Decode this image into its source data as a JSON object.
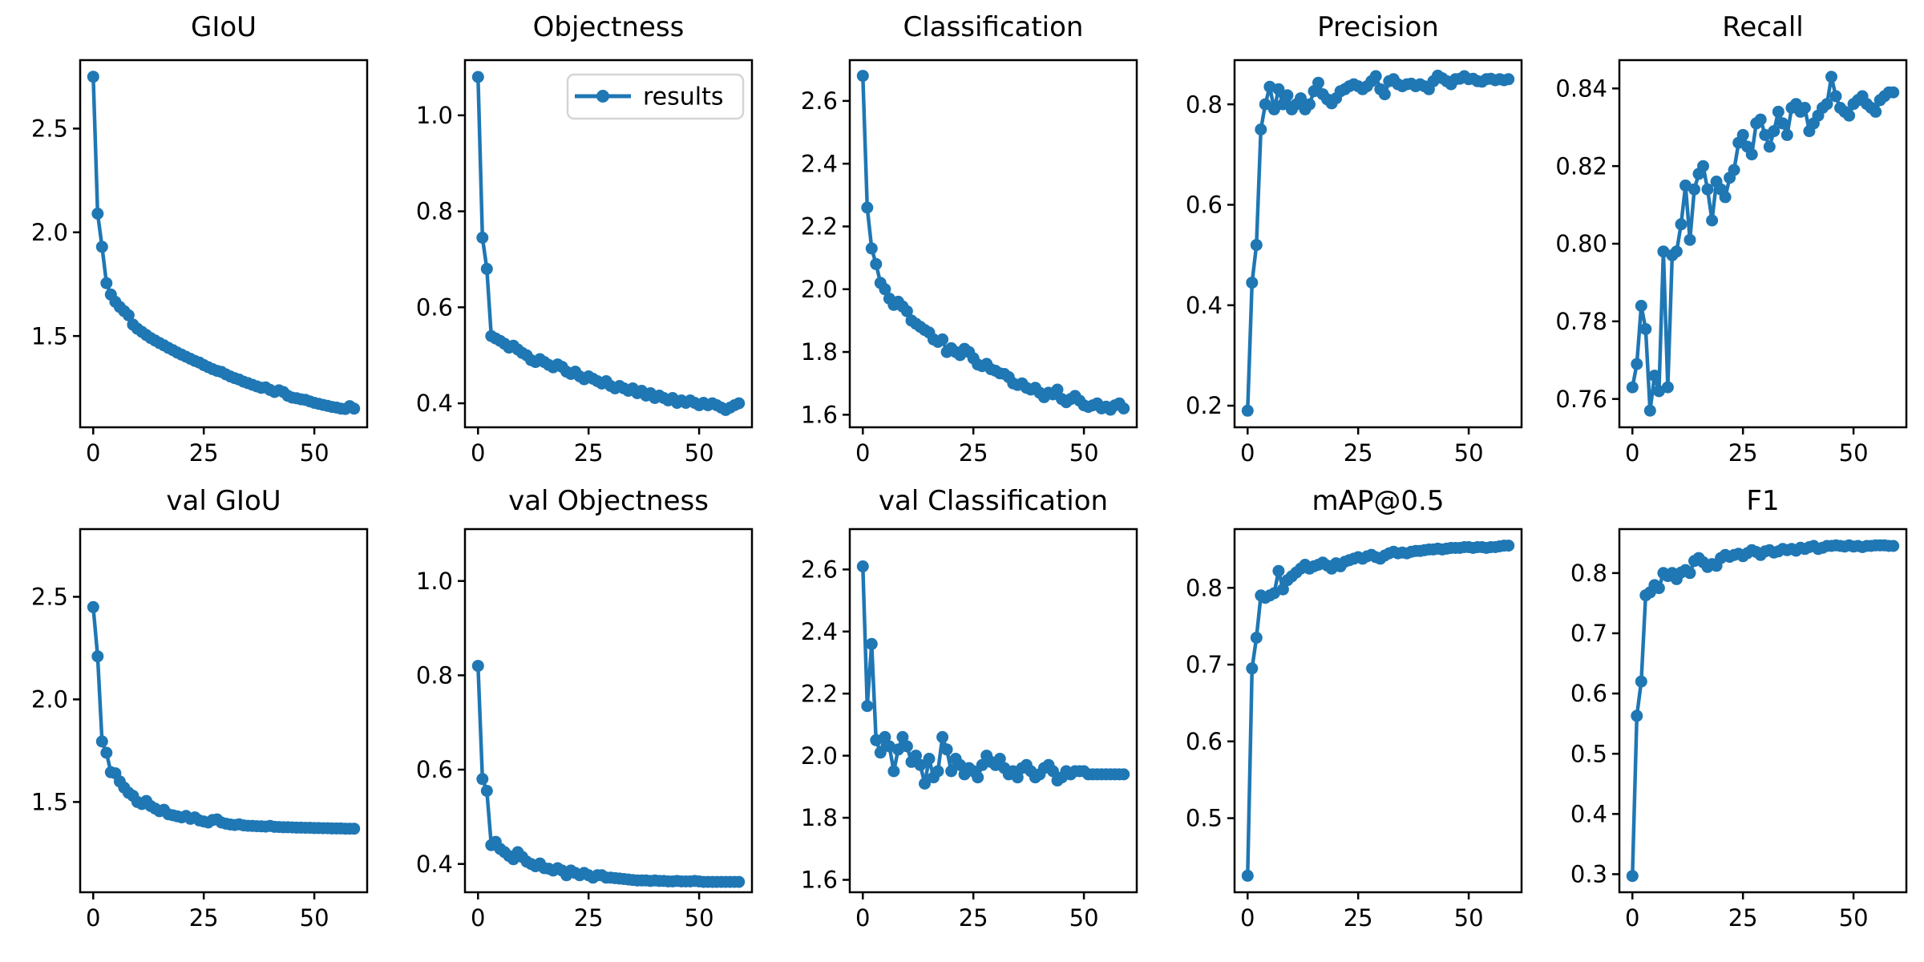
{
  "figure": {
    "background": "#ffffff",
    "text_color": "#000000",
    "spine_color": "#000000",
    "line_color": "#1f77b4",
    "legend": {
      "label": "results",
      "border_color": "#d5d5d5",
      "fill": "#ffffff"
    }
  },
  "chart_data": {
    "type": "line",
    "layout": "2 rows x 5 columns, no grid lines, legend only in Objectness panel (upper right)",
    "marker": "circle",
    "series_color": "#1f77b4",
    "epochs": [
      0,
      1,
      2,
      3,
      4,
      5,
      6,
      7,
      8,
      9,
      10,
      11,
      12,
      13,
      14,
      15,
      16,
      17,
      18,
      19,
      20,
      21,
      22,
      23,
      24,
      25,
      26,
      27,
      28,
      29,
      30,
      31,
      32,
      33,
      34,
      35,
      36,
      37,
      38,
      39,
      40,
      41,
      42,
      43,
      44,
      45,
      46,
      47,
      48,
      49,
      50,
      51,
      52,
      53,
      54,
      55,
      56,
      57,
      58,
      59
    ],
    "xlim": [
      -2.95,
      61.95
    ],
    "xticks": [
      0,
      25,
      50
    ],
    "plots": [
      {
        "id": "giou",
        "title": "GIoU",
        "row": 0,
        "ylim": [
          1.06,
          2.83
        ],
        "yticks": [
          1.5,
          2.0,
          2.5
        ],
        "ytick_decimals": 1,
        "values": [
          2.75,
          2.09,
          1.93,
          1.755,
          1.7,
          1.665,
          1.64,
          1.62,
          1.6,
          1.555,
          1.535,
          1.52,
          1.505,
          1.49,
          1.478,
          1.466,
          1.455,
          1.443,
          1.432,
          1.42,
          1.41,
          1.4,
          1.39,
          1.38,
          1.372,
          1.36,
          1.35,
          1.34,
          1.332,
          1.327,
          1.315,
          1.305,
          1.297,
          1.29,
          1.28,
          1.273,
          1.265,
          1.257,
          1.25,
          1.252,
          1.24,
          1.23,
          1.238,
          1.23,
          1.212,
          1.203,
          1.2,
          1.195,
          1.192,
          1.185,
          1.178,
          1.173,
          1.168,
          1.163,
          1.158,
          1.155,
          1.15,
          1.148,
          1.162,
          1.15
        ]
      },
      {
        "id": "objectness",
        "title": "Objectness",
        "row": 0,
        "legend": "results",
        "ylim": [
          0.35,
          1.115
        ],
        "yticks": [
          0.4,
          0.6,
          0.8,
          1.0
        ],
        "ytick_decimals": 1,
        "values": [
          1.08,
          0.745,
          0.68,
          0.54,
          0.535,
          0.53,
          0.524,
          0.516,
          0.52,
          0.512,
          0.505,
          0.5,
          0.49,
          0.486,
          0.492,
          0.486,
          0.48,
          0.475,
          0.481,
          0.476,
          0.466,
          0.461,
          0.466,
          0.456,
          0.45,
          0.456,
          0.451,
          0.446,
          0.441,
          0.446,
          0.436,
          0.431,
          0.436,
          0.431,
          0.426,
          0.431,
          0.421,
          0.426,
          0.416,
          0.421,
          0.411,
          0.416,
          0.411,
          0.406,
          0.411,
          0.401,
          0.406,
          0.401,
          0.406,
          0.401,
          0.396,
          0.401,
          0.396,
          0.4,
          0.396,
          0.391,
          0.386,
          0.391,
          0.396,
          0.4
        ]
      },
      {
        "id": "classification",
        "title": "Classification",
        "row": 0,
        "ylim": [
          1.56,
          2.73
        ],
        "yticks": [
          1.6,
          1.8,
          2.0,
          2.2,
          2.4,
          2.6
        ],
        "ytick_decimals": 1,
        "values": [
          2.68,
          2.26,
          2.13,
          2.08,
          2.02,
          2.0,
          1.97,
          1.95,
          1.96,
          1.945,
          1.93,
          1.9,
          1.89,
          1.88,
          1.87,
          1.862,
          1.84,
          1.832,
          1.84,
          1.8,
          1.812,
          1.8,
          1.79,
          1.81,
          1.8,
          1.78,
          1.76,
          1.755,
          1.762,
          1.745,
          1.74,
          1.732,
          1.73,
          1.72,
          1.7,
          1.695,
          1.7,
          1.686,
          1.68,
          1.686,
          1.67,
          1.656,
          1.67,
          1.665,
          1.68,
          1.65,
          1.64,
          1.65,
          1.66,
          1.645,
          1.63,
          1.625,
          1.63,
          1.636,
          1.62,
          1.626,
          1.616,
          1.63,
          1.636,
          1.62
        ]
      },
      {
        "id": "precision",
        "title": "Precision",
        "row": 0,
        "ylim": [
          0.157,
          0.888
        ],
        "yticks": [
          0.2,
          0.4,
          0.6,
          0.8
        ],
        "ytick_decimals": 1,
        "values": [
          0.19,
          0.445,
          0.52,
          0.75,
          0.8,
          0.835,
          0.79,
          0.83,
          0.8,
          0.818,
          0.79,
          0.8,
          0.812,
          0.79,
          0.8,
          0.826,
          0.843,
          0.82,
          0.81,
          0.802,
          0.812,
          0.826,
          0.83,
          0.836,
          0.84,
          0.836,
          0.83,
          0.836,
          0.846,
          0.856,
          0.83,
          0.82,
          0.846,
          0.85,
          0.84,
          0.836,
          0.84,
          0.841,
          0.836,
          0.84,
          0.836,
          0.83,
          0.846,
          0.857,
          0.852,
          0.846,
          0.84,
          0.85,
          0.851,
          0.856,
          0.85,
          0.851,
          0.846,
          0.845,
          0.85,
          0.851,
          0.848,
          0.85,
          0.848,
          0.85
        ]
      },
      {
        "id": "recall",
        "title": "Recall",
        "row": 0,
        "ylim": [
          0.7527,
          0.8473
        ],
        "yticks": [
          0.76,
          0.78,
          0.8,
          0.82,
          0.84
        ],
        "ytick_decimals": 2,
        "values": [
          0.763,
          0.769,
          0.784,
          0.778,
          0.757,
          0.766,
          0.762,
          0.798,
          0.763,
          0.797,
          0.798,
          0.805,
          0.815,
          0.801,
          0.814,
          0.818,
          0.82,
          0.814,
          0.806,
          0.816,
          0.814,
          0.812,
          0.817,
          0.819,
          0.826,
          0.828,
          0.825,
          0.823,
          0.831,
          0.832,
          0.828,
          0.825,
          0.829,
          0.834,
          0.831,
          0.828,
          0.835,
          0.836,
          0.834,
          0.835,
          0.829,
          0.831,
          0.833,
          0.835,
          0.836,
          0.843,
          0.838,
          0.835,
          0.834,
          0.833,
          0.836,
          0.837,
          0.838,
          0.836,
          0.835,
          0.834,
          0.837,
          0.838,
          0.839,
          0.839
        ]
      },
      {
        "id": "val-giou",
        "title": "val GIoU",
        "row": 1,
        "ylim": [
          1.06,
          2.83
        ],
        "yticks": [
          1.5,
          2.0,
          2.5
        ],
        "ytick_decimals": 1,
        "values": [
          2.45,
          2.21,
          1.795,
          1.74,
          1.645,
          1.64,
          1.6,
          1.57,
          1.545,
          1.53,
          1.5,
          1.49,
          1.505,
          1.48,
          1.468,
          1.455,
          1.462,
          1.44,
          1.435,
          1.43,
          1.425,
          1.432,
          1.418,
          1.425,
          1.41,
          1.405,
          1.4,
          1.412,
          1.415,
          1.4,
          1.394,
          1.39,
          1.388,
          1.391,
          1.386,
          1.384,
          1.383,
          1.382,
          1.381,
          1.38,
          1.383,
          1.379,
          1.378,
          1.377,
          1.377,
          1.376,
          1.375,
          1.375,
          1.374,
          1.374,
          1.373,
          1.373,
          1.372,
          1.372,
          1.371,
          1.371,
          1.371,
          1.37,
          1.37,
          1.37
        ]
      },
      {
        "id": "val-objectness",
        "title": "val Objectness",
        "row": 1,
        "ylim": [
          0.34,
          1.11
        ],
        "yticks": [
          0.4,
          0.6,
          0.8,
          1.0
        ],
        "ytick_decimals": 1,
        "values": [
          0.82,
          0.58,
          0.555,
          0.44,
          0.447,
          0.432,
          0.425,
          0.417,
          0.41,
          0.425,
          0.415,
          0.405,
          0.4,
          0.395,
          0.401,
          0.391,
          0.39,
          0.386,
          0.391,
          0.386,
          0.376,
          0.386,
          0.381,
          0.376,
          0.381,
          0.376,
          0.371,
          0.376,
          0.376,
          0.371,
          0.371,
          0.37,
          0.369,
          0.368,
          0.367,
          0.366,
          0.365,
          0.365,
          0.365,
          0.364,
          0.365,
          0.364,
          0.364,
          0.363,
          0.363,
          0.364,
          0.363,
          0.363,
          0.363,
          0.364,
          0.363,
          0.362,
          0.362,
          0.362,
          0.362,
          0.362,
          0.362,
          0.362,
          0.362,
          0.362
        ]
      },
      {
        "id": "val-classification",
        "title": "val Classification",
        "row": 1,
        "ylim": [
          1.56,
          2.73
        ],
        "yticks": [
          1.6,
          1.8,
          2.0,
          2.2,
          2.4,
          2.6
        ],
        "ytick_decimals": 1,
        "values": [
          2.61,
          2.16,
          2.36,
          2.05,
          2.01,
          2.06,
          2.03,
          1.95,
          2.02,
          2.06,
          2.03,
          1.98,
          2.0,
          1.97,
          1.91,
          1.99,
          1.93,
          1.95,
          2.06,
          2.02,
          1.95,
          1.99,
          1.97,
          1.94,
          1.96,
          1.95,
          1.93,
          1.97,
          2.0,
          1.98,
          1.97,
          1.99,
          1.96,
          1.94,
          1.95,
          1.93,
          1.96,
          1.97,
          1.95,
          1.93,
          1.94,
          1.96,
          1.97,
          1.95,
          1.92,
          1.93,
          1.95,
          1.94,
          1.95,
          1.95,
          1.95,
          1.94,
          1.94,
          1.94,
          1.94,
          1.94,
          1.94,
          1.94,
          1.94,
          1.94
        ]
      },
      {
        "id": "map05",
        "title": "mAP@0.5",
        "row": 1,
        "ylim": [
          0.4035,
          0.8765
        ],
        "yticks": [
          0.5,
          0.6,
          0.7,
          0.8
        ],
        "ytick_decimals": 1,
        "values": [
          0.425,
          0.695,
          0.735,
          0.79,
          0.787,
          0.79,
          0.793,
          0.822,
          0.798,
          0.81,
          0.815,
          0.82,
          0.825,
          0.83,
          0.825,
          0.828,
          0.83,
          0.833,
          0.829,
          0.825,
          0.832,
          0.828,
          0.834,
          0.836,
          0.838,
          0.84,
          0.838,
          0.841,
          0.843,
          0.84,
          0.838,
          0.842,
          0.845,
          0.847,
          0.845,
          0.846,
          0.845,
          0.847,
          0.848,
          0.848,
          0.849,
          0.85,
          0.85,
          0.851,
          0.85,
          0.851,
          0.852,
          0.852,
          0.852,
          0.853,
          0.853,
          0.852,
          0.853,
          0.853,
          0.852,
          0.853,
          0.853,
          0.854,
          0.855,
          0.855
        ]
      },
      {
        "id": "f1",
        "title": "F1",
        "row": 1,
        "ylim": [
          0.27,
          0.873
        ],
        "yticks": [
          0.3,
          0.4,
          0.5,
          0.6,
          0.7,
          0.8
        ],
        "ytick_decimals": 1,
        "values": [
          0.297,
          0.563,
          0.62,
          0.763,
          0.768,
          0.78,
          0.775,
          0.8,
          0.795,
          0.8,
          0.79,
          0.801,
          0.805,
          0.8,
          0.82,
          0.825,
          0.818,
          0.81,
          0.815,
          0.812,
          0.825,
          0.83,
          0.827,
          0.83,
          0.832,
          0.828,
          0.833,
          0.838,
          0.835,
          0.83,
          0.836,
          0.838,
          0.834,
          0.836,
          0.84,
          0.838,
          0.84,
          0.837,
          0.842,
          0.84,
          0.843,
          0.845,
          0.84,
          0.842,
          0.845,
          0.845,
          0.846,
          0.845,
          0.844,
          0.846,
          0.844,
          0.845,
          0.843,
          0.845,
          0.845,
          0.846,
          0.846,
          0.846,
          0.845,
          0.845
        ]
      }
    ]
  }
}
